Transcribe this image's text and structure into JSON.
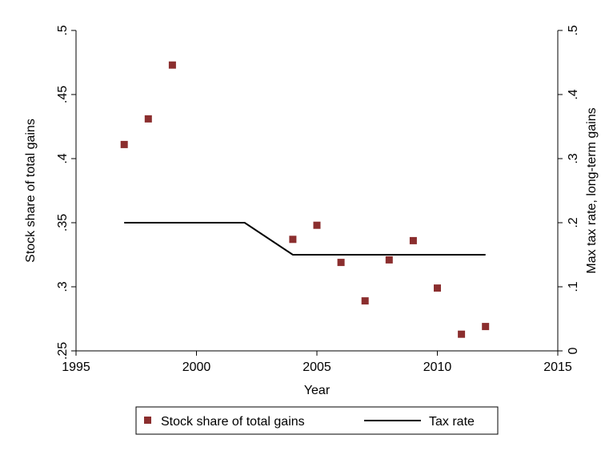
{
  "chart_data": {
    "type": "scatter",
    "xlabel": "Year",
    "ylabel_left": "Stock share of total gains",
    "ylabel_right": "Max tax rate, long-term gains",
    "xlim": [
      1995,
      2015
    ],
    "ylim_left": [
      0.25,
      0.5
    ],
    "ylim_right": [
      0,
      0.5
    ],
    "x_ticks": [
      "1995",
      "2000",
      "2005",
      "2010",
      "2015"
    ],
    "y_ticks_left": [
      ".25",
      ".3",
      ".35",
      ".4",
      ".45",
      ".5"
    ],
    "y_ticks_right": [
      "0",
      ".1",
      ".2",
      ".3",
      ".4",
      ".5"
    ],
    "series": [
      {
        "name": "Stock share of total gains",
        "type": "scatter",
        "axis": "left",
        "color": "#8b2e2e",
        "marker": "square",
        "x": [
          1997,
          1998,
          1999,
          2004,
          2005,
          2006,
          2007,
          2008,
          2009,
          2010,
          2011,
          2012
        ],
        "y": [
          0.411,
          0.431,
          0.473,
          0.337,
          0.348,
          0.319,
          0.289,
          0.321,
          0.336,
          0.299,
          0.263,
          0.269
        ]
      },
      {
        "name": "Tax rate",
        "type": "line",
        "axis": "right",
        "color": "#000000",
        "x": [
          1997,
          2002,
          2004,
          2012
        ],
        "y": [
          0.2,
          0.2,
          0.15,
          0.15
        ]
      }
    ],
    "legend_position": "bottom",
    "grid": false
  }
}
